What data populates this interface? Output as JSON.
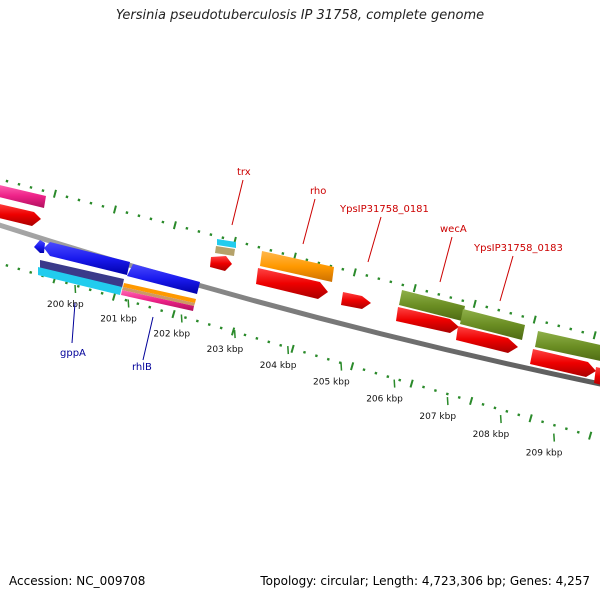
{
  "header": {
    "title": "Yersinia pseudotuberculosis IP 31758, complete genome"
  },
  "footer": {
    "accession": "Accession: NC_009708",
    "summary": "Topology: circular; Length: 4,723,306 bp; Genes: 4,257"
  },
  "ruler": {
    "labels": [
      "200 kbp",
      "201 kbp",
      "202 kbp",
      "203 kbp",
      "204 kbp",
      "205 kbp",
      "206 kbp",
      "207 kbp",
      "208 kbp",
      "209 kbp"
    ]
  },
  "gene_labels": {
    "trx": "trx",
    "rho": "rho",
    "ypsip0181": "YpsIP31758_0181",
    "weca": "wecA",
    "ypsip0183": "YpsIP31758_0183",
    "gppa": "gppA",
    "rhlb": "rhlB"
  },
  "colors": {
    "backbone": "#808080",
    "tick": "#2a8a2a",
    "red_feature": "#ee0000",
    "blue_feature": "#1a1aee",
    "orange_feature": "#ff9900",
    "olive_feature": "#6b8e23",
    "pink_feature": "#ee2288",
    "cyan_feature": "#22ccee"
  }
}
